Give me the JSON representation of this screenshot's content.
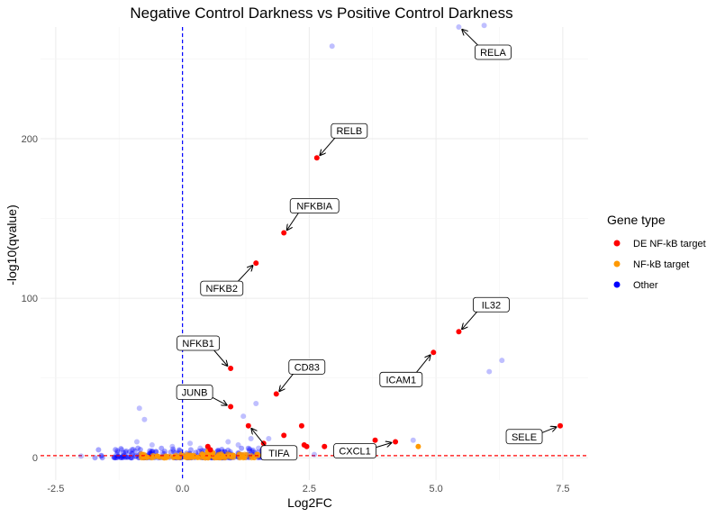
{
  "chart_data": {
    "type": "scatter",
    "title": "Negative Control Darkness vs Positive Control Darkness",
    "xlabel": "Log2FC",
    "ylabel": "-log10(qvalue)",
    "xlim": [
      -2.8,
      8.0
    ],
    "ylim": [
      -14,
      270
    ],
    "x_ticks": [
      -2.5,
      0.0,
      2.5,
      5.0,
      7.5
    ],
    "x_tick_labels": [
      "-2.5",
      "0.0",
      "2.5",
      "5.0",
      "7.5"
    ],
    "y_ticks": [
      0,
      100,
      200
    ],
    "y_tick_labels": [
      "0",
      "100",
      "200"
    ],
    "grid": true,
    "legend": {
      "title": "Gene type",
      "position": "right",
      "entries": [
        {
          "label": "DE NF-kB target",
          "color": "#ff0000"
        },
        {
          "label": "NF-kB target",
          "color": "#ff9900"
        },
        {
          "label": "Other",
          "color": "#0000ff"
        }
      ]
    },
    "reference_lines": [
      {
        "orientation": "vertical",
        "value": 0,
        "color": "#0000ff",
        "style": "dashed"
      },
      {
        "orientation": "horizontal",
        "value": 1.3,
        "color": "#ff0000",
        "style": "dashed"
      }
    ],
    "series": [
      {
        "name": "DE NF-kB target",
        "color": "#ff0000",
        "points": [
          {
            "x": 2.65,
            "y": 188,
            "label": "RELB"
          },
          {
            "x": 2.0,
            "y": 141,
            "label": "NFKBIA"
          },
          {
            "x": 1.45,
            "y": 122,
            "label": "NFKB2"
          },
          {
            "x": 5.45,
            "y": 79,
            "label": "IL32"
          },
          {
            "x": 4.95,
            "y": 66,
            "label": "ICAM1"
          },
          {
            "x": 0.95,
            "y": 56,
            "label": "NFKB1"
          },
          {
            "x": 1.85,
            "y": 40,
            "label": "CD83"
          },
          {
            "x": 0.95,
            "y": 32,
            "label": "JUNB"
          },
          {
            "x": 1.3,
            "y": 20,
            "label": "TIFA"
          },
          {
            "x": 7.45,
            "y": 20,
            "label": "SELE"
          },
          {
            "x": 4.2,
            "y": 10,
            "label": "CXCL1"
          },
          {
            "x": 2.35,
            "y": 20
          },
          {
            "x": 2.0,
            "y": 14
          },
          {
            "x": 2.4,
            "y": 8
          },
          {
            "x": 2.45,
            "y": 7
          },
          {
            "x": 3.8,
            "y": 11
          },
          {
            "x": 2.8,
            "y": 7
          },
          {
            "x": 1.6,
            "y": 9
          },
          {
            "x": 0.5,
            "y": 7
          },
          {
            "x": 0.55,
            "y": 5
          }
        ]
      },
      {
        "name": "NF-kB target",
        "color": "#ff9900",
        "points": [
          {
            "x": 4.65,
            "y": 7
          },
          {
            "x": -0.5,
            "y": 1
          },
          {
            "x": -0.3,
            "y": 0.5
          },
          {
            "x": 0.2,
            "y": 0.5
          },
          {
            "x": 0.4,
            "y": 2
          },
          {
            "x": 0.6,
            "y": 3
          },
          {
            "x": 0.8,
            "y": 1
          },
          {
            "x": 1.0,
            "y": 1.5
          },
          {
            "x": -0.1,
            "y": 0.3
          },
          {
            "x": 0.1,
            "y": 1
          },
          {
            "x": 0.3,
            "y": 0.2
          },
          {
            "x": 0.7,
            "y": 0.8
          },
          {
            "x": -0.7,
            "y": 0.4
          },
          {
            "x": 1.2,
            "y": 0.6
          },
          {
            "x": 0.5,
            "y": 4
          }
        ]
      },
      {
        "name": "Other",
        "color": "#0000ff",
        "points": [
          {
            "x": 5.45,
            "y": 270,
            "label": "RELA"
          },
          {
            "x": 5.95,
            "y": 271
          },
          {
            "x": 2.95,
            "y": 258
          },
          {
            "x": 6.3,
            "y": 61
          },
          {
            "x": 6.05,
            "y": 54
          },
          {
            "x": -0.85,
            "y": 31
          },
          {
            "x": 1.45,
            "y": 34
          },
          {
            "x": 1.2,
            "y": 26
          },
          {
            "x": -0.75,
            "y": 24
          },
          {
            "x": 4.55,
            "y": 11
          },
          {
            "x": -2.0,
            "y": 1
          },
          {
            "x": -1.6,
            "y": 1
          },
          {
            "x": -1.3,
            "y": 2
          },
          {
            "x": -1.0,
            "y": 5
          },
          {
            "x": -0.6,
            "y": 8
          },
          {
            "x": -0.4,
            "y": 3
          },
          {
            "x": 0.9,
            "y": 10
          },
          {
            "x": 1.5,
            "y": 6
          },
          {
            "x": 1.8,
            "y": 4
          },
          {
            "x": 2.2,
            "y": 3
          },
          {
            "x": 2.6,
            "y": 2
          },
          {
            "x": 3.2,
            "y": 3
          },
          {
            "x": -0.9,
            "y": 10
          },
          {
            "x": 0.35,
            "y": 6
          },
          {
            "x": -1.2,
            "y": 5
          },
          {
            "x": 1.1,
            "y": 8
          },
          {
            "x": 0.15,
            "y": 9
          },
          {
            "x": -0.2,
            "y": 7
          },
          {
            "x": 1.7,
            "y": 12
          },
          {
            "x": 1.35,
            "y": 12
          }
        ]
      }
    ]
  }
}
